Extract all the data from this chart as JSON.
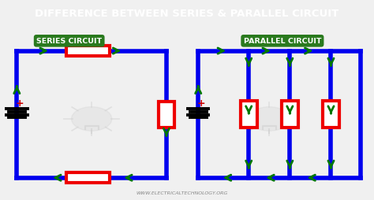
{
  "title": "DIFFERENCE BETWEEN SERIES & PARALLEL CIRCUIT",
  "title_bg": "#000000",
  "title_color": "#ffffff",
  "bg_color": "#f0f0f0",
  "label_series": "SERIES CIRCUIT",
  "label_parallel": "PARALLEL CIRCUIT",
  "label_bg": "#2a7a1e",
  "label_color": "#ffffff",
  "wire_color": "#0000ee",
  "resistor_fill": "#ffffff",
  "resistor_edge": "#ee0000",
  "arrow_color": "#007700",
  "battery_color": "#000000",
  "plus_color": "#cc0000",
  "website": "WWW.ELECTRICALTECHNOLOGY.ORG",
  "wire_lw": 4.0,
  "resistor_lw": 3.0,
  "arrow_ms": 13
}
